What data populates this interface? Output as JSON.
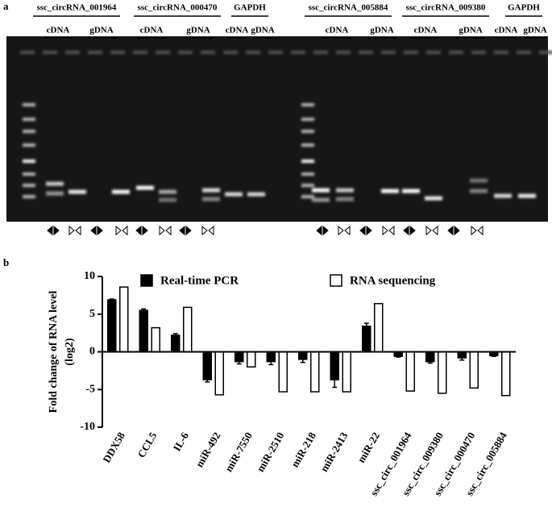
{
  "panel_a": {
    "label": "a",
    "groups": [
      "ssc_circRNA_001964",
      "ssc_circRNA_000470",
      "GAPDH",
      "ssc_circRNA_005884",
      "ssc_circRNA_009380",
      "GAPDH"
    ],
    "lanes": [
      "cDNA",
      "gDNA",
      "cDNA",
      "gDNA",
      "cDNA",
      "gDNA",
      "cDNA",
      "gDNA",
      "cDNA",
      "gDNA",
      "cDNA",
      "gDNA"
    ]
  },
  "panel_b_label": "b",
  "chart_data": {
    "type": "bar",
    "ylabel": [
      "Fold change of RNA level",
      "(log2)"
    ],
    "categories": [
      "DDX58",
      "CCL5",
      "IL-6",
      "miR-492",
      "miR-7550",
      "miR-2510",
      "miR-218",
      "miR-2413",
      "miR-22",
      "ssc_circ_001964",
      "ssc_circ_009380",
      "ssc_circ_000470",
      "ssc_circ_005884"
    ],
    "series": [
      {
        "name": "Real-time PCR",
        "color": "#000000",
        "values": [
          6.9,
          5.5,
          2.2,
          -3.7,
          -1.3,
          -1.3,
          -1.0,
          -3.7,
          3.4,
          -0.6,
          -1.3,
          -0.8,
          -0.5
        ],
        "errors": [
          0.1,
          0.2,
          0.2,
          0.3,
          0.3,
          0.4,
          0.4,
          1.0,
          0.4,
          0.1,
          0.2,
          0.3,
          0.1
        ]
      },
      {
        "name": "RNA sequencing",
        "color": "#ffffff",
        "values": [
          8.6,
          3.2,
          5.9,
          -5.7,
          -2.0,
          -5.3,
          -5.3,
          -5.3,
          6.4,
          -5.2,
          -5.5,
          -4.8,
          -5.8
        ]
      }
    ],
    "ylim": [
      -10,
      10
    ],
    "yticks": [
      -10,
      -5,
      0,
      5,
      10
    ]
  }
}
